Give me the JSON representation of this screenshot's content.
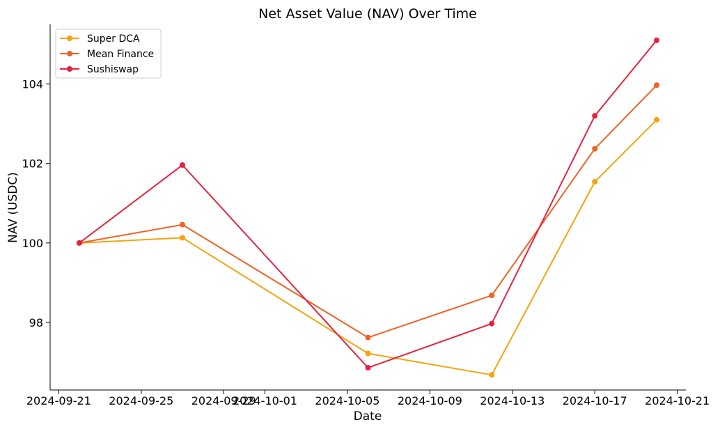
{
  "chart_data": {
    "type": "line",
    "title": "Net Asset Value (NAV) Over Time",
    "xlabel": "Date",
    "ylabel": "NAV (USDC)",
    "x_dates": [
      "2024-09-22",
      "2024-09-27",
      "2024-10-06",
      "2024-10-12",
      "2024-10-17",
      "2024-10-20"
    ],
    "x_tick_labels": [
      "2024-09-21",
      "2024-09-25",
      "2024-09-29",
      "2024-10-01",
      "2024-10-05",
      "2024-10-09",
      "2024-10-13",
      "2024-10-17",
      "2024-10-21"
    ],
    "xlim": [
      "2024-09-20T14:00",
      "2024-10-21T10:00"
    ],
    "ylim": [
      96.3,
      105.5
    ],
    "y_ticks": [
      98,
      100,
      102,
      104
    ],
    "legend_position": "top-left",
    "grid": false,
    "series": [
      {
        "name": "Super DCA",
        "color": "#F5A40C",
        "values": [
          100.0,
          100.13,
          97.22,
          96.68,
          101.54,
          103.1
        ]
      },
      {
        "name": "Mean Finance",
        "color": "#EF6222",
        "values": [
          100.0,
          100.46,
          97.62,
          98.68,
          102.37,
          103.97
        ]
      },
      {
        "name": "Sushiswap",
        "color": "#E6223E",
        "values": [
          100.0,
          101.96,
          96.86,
          97.97,
          103.2,
          105.1
        ]
      }
    ]
  }
}
